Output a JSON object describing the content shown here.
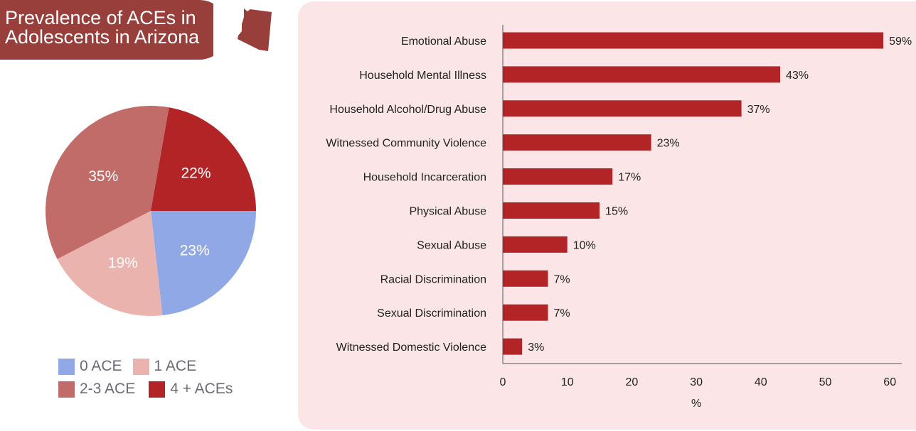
{
  "header": {
    "title_line1": "Prevalence of ACEs in",
    "title_line2": "Adolescents in Arizona",
    "state_icon": "arizona-map-icon"
  },
  "colors": {
    "banner": "#983f3b",
    "bar": "#b22426",
    "panel": "#fbe5e6",
    "ace0": "#91a8e6",
    "ace1": "#eab3ae",
    "ace23": "#c16c69",
    "ace4": "#b22426"
  },
  "chart_data": [
    {
      "type": "pie",
      "title": "",
      "categories": [
        "0 ACE",
        "1 ACE",
        "2-3 ACE",
        "4 + ACEs"
      ],
      "values": [
        23,
        19,
        35,
        22
      ],
      "labels": [
        "23%",
        "19%",
        "35%",
        "22%"
      ],
      "legend": "bottom"
    },
    {
      "type": "bar",
      "orientation": "horizontal",
      "categories": [
        "Emotional Abuse",
        "Household Mental Illness",
        "Household Alcohol/Drug Abuse",
        "Witnessed Community Violence",
        "Household Incarceration",
        "Physical Abuse",
        "Sexual Abuse",
        "Racial Discrimination",
        "Sexual Discrimination",
        "Witnessed Domestic Violence"
      ],
      "values": [
        59,
        43,
        37,
        23,
        17,
        15,
        10,
        7,
        7,
        3
      ],
      "labels": [
        "59%",
        "43%",
        "37%",
        "23%",
        "17%",
        "15%",
        "10%",
        "7%",
        "7%",
        "3%"
      ],
      "xlabel": "%",
      "ylabel": "",
      "xlim": [
        0,
        60
      ],
      "xticks": [
        "0",
        "10",
        "20",
        "30",
        "40",
        "50",
        "60"
      ],
      "grid": false
    }
  ]
}
